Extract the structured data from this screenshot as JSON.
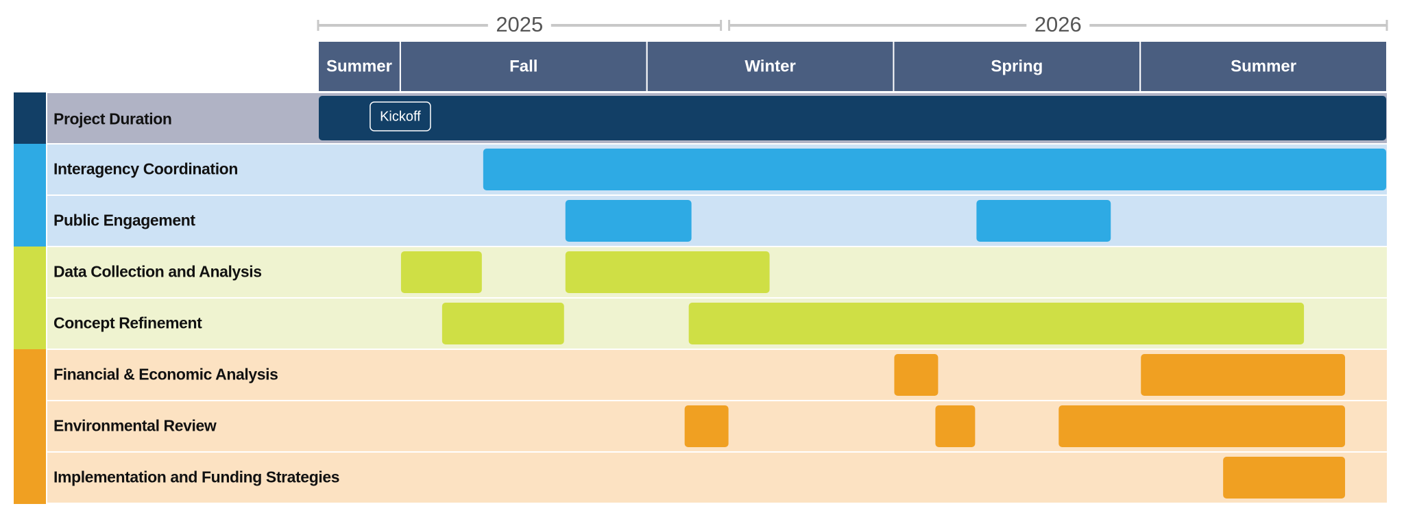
{
  "chart_data": {
    "type": "gantt",
    "xlim": [
      0,
      13
    ],
    "years": [
      {
        "label": "2025",
        "start": 0,
        "end": 4.9
      },
      {
        "label": "2026",
        "start": 5,
        "end": 13
      }
    ],
    "periods": [
      {
        "label": "Summer",
        "start": 0,
        "end": 1
      },
      {
        "label": "Fall",
        "start": 1,
        "end": 4
      },
      {
        "label": "Winter",
        "start": 4,
        "end": 7
      },
      {
        "label": "Spring",
        "start": 7,
        "end": 10
      },
      {
        "label": "Summer",
        "start": 10,
        "end": 13
      }
    ],
    "header_color": "#4a5e80",
    "tasks": [
      {
        "name": "Project Duration",
        "color": "#123f66",
        "background": "#b0b3c5",
        "bars": [
          {
            "start": 0,
            "end": 13
          }
        ]
      },
      {
        "name": "Interagency Coordination",
        "color": "#2eaae4",
        "background": "#cde2f5",
        "bars": [
          {
            "start": 2,
            "end": 13
          }
        ]
      },
      {
        "name": "Public Engagement",
        "color": "#2eaae4",
        "background": "#cde2f5",
        "bars": [
          {
            "start": 3,
            "end": 4.55
          },
          {
            "start": 8,
            "end": 9.65
          }
        ]
      },
      {
        "name": "Data Collection and Analysis",
        "color": "#cfdf45",
        "background": "#eff3d0",
        "bars": [
          {
            "start": 1,
            "end": 2
          },
          {
            "start": 3,
            "end": 5.5
          }
        ]
      },
      {
        "name": "Concept Refinement",
        "color": "#cfdf45",
        "background": "#eff3d0",
        "bars": [
          {
            "start": 1.5,
            "end": 3
          },
          {
            "start": 4.5,
            "end": 12
          }
        ]
      },
      {
        "name": "Financial & Economic Analysis",
        "color": "#f0a022",
        "background": "#fce2c2",
        "bars": [
          {
            "start": 7,
            "end": 7.55
          },
          {
            "start": 10,
            "end": 12.5
          }
        ]
      },
      {
        "name": "Environmental Review",
        "color": "#f0a022",
        "background": "#fce2c2",
        "bars": [
          {
            "start": 4.45,
            "end": 5
          },
          {
            "start": 7.5,
            "end": 8
          },
          {
            "start": 9,
            "end": 12.5
          }
        ]
      },
      {
        "name": "Implementation and Funding Strategies",
        "color": "#f0a022",
        "background": "#fce2c2",
        "bars": [
          {
            "start": 11,
            "end": 12.5
          }
        ]
      }
    ],
    "milestone": {
      "label": "Kickoff",
      "value": 1
    }
  }
}
